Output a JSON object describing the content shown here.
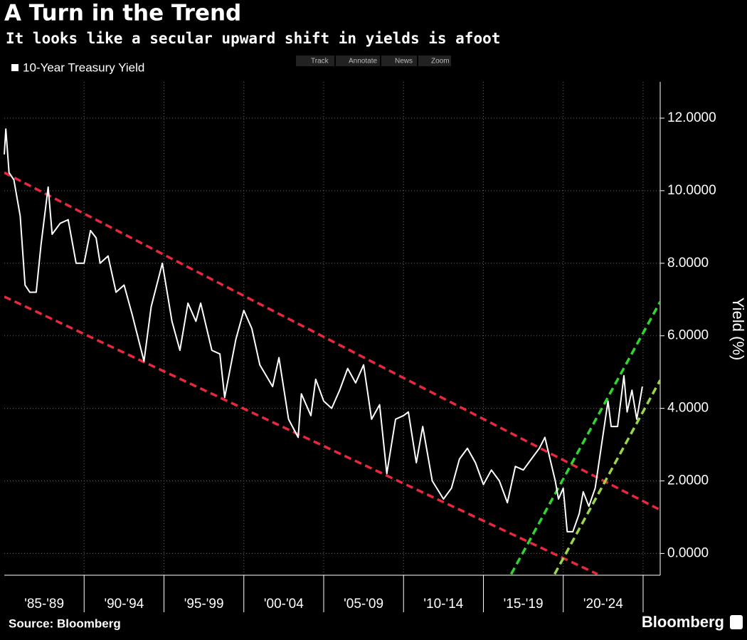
{
  "chart_data": {
    "type": "line",
    "title": "A Turn in the Trend",
    "subtitle": "It looks like a secular upward shift in yields is afoot",
    "y_label": "Yield (%)",
    "source": "Source: Bloomberg",
    "brand": "Bloomberg",
    "toolbar": [
      "Track",
      "Annotate",
      "News",
      "Zoom"
    ],
    "categories": [
      "'85-'89",
      "'90-'94",
      "'95-'99",
      "'00-'04",
      "'05-'09",
      "'10-'14",
      "'15-'19",
      "'20-'24"
    ],
    "xlim": [
      1985,
      2026.07
    ],
    "xticks": [
      1990,
      1995,
      2000,
      2005,
      2010,
      2015,
      2020,
      2025
    ],
    "ylim": [
      -0.6,
      13.0
    ],
    "yticks": [
      {
        "value": 0,
        "label": "0.0000"
      },
      {
        "value": 2,
        "label": "2.0000"
      },
      {
        "value": 4,
        "label": "4.0000"
      },
      {
        "value": 6,
        "label": "6.0000"
      },
      {
        "value": 8,
        "label": "8.0000"
      },
      {
        "value": 10,
        "label": "10.0000"
      },
      {
        "value": 12,
        "label": "12.0000"
      }
    ],
    "grid": true,
    "series": [
      {
        "name": "10-Year Treasury Yield",
        "color": "#ffffff",
        "x": [
          1985.0,
          1985.1,
          1985.3,
          1985.6,
          1986.0,
          1986.3,
          1986.6,
          1987.0,
          1987.3,
          1987.75,
          1988.0,
          1988.5,
          1989.0,
          1989.5,
          1990.0,
          1990.4,
          1990.75,
          1991.0,
          1991.5,
          1992.0,
          1992.5,
          1993.0,
          1993.75,
          1994.2,
          1994.9,
          1995.5,
          1996.0,
          1996.5,
          1997.0,
          1997.3,
          1998.0,
          1998.5,
          1998.8,
          1999.5,
          2000.0,
          2000.5,
          2001.0,
          2001.8,
          2002.2,
          2002.8,
          2003.4,
          2003.6,
          2004.2,
          2004.5,
          2005.0,
          2005.5,
          2006.0,
          2006.5,
          2007.0,
          2007.5,
          2008.0,
          2008.5,
          2008.95,
          2009.5,
          2010.0,
          2010.3,
          2010.8,
          2011.2,
          2011.8,
          2012.5,
          2013.0,
          2013.5,
          2014.0,
          2014.5,
          2015.0,
          2015.5,
          2016.0,
          2016.5,
          2017.0,
          2017.5,
          2018.0,
          2018.5,
          2018.85,
          2019.5,
          2019.7,
          2020.0,
          2020.25,
          2020.6,
          2021.0,
          2021.25,
          2021.6,
          2022.0,
          2022.4,
          2022.8,
          2023.0,
          2023.4,
          2023.8,
          2024.0,
          2024.3,
          2024.6,
          2024.95
        ],
        "values": [
          11.0,
          11.7,
          10.5,
          10.3,
          9.3,
          7.4,
          7.2,
          7.2,
          8.5,
          10.1,
          8.8,
          9.1,
          9.2,
          8.0,
          8.0,
          8.9,
          8.7,
          8.0,
          8.2,
          7.2,
          7.4,
          6.6,
          5.3,
          6.8,
          8.0,
          6.4,
          5.6,
          6.9,
          6.4,
          6.9,
          5.6,
          5.5,
          4.3,
          5.9,
          6.7,
          6.2,
          5.2,
          4.6,
          5.4,
          3.7,
          3.2,
          4.4,
          3.8,
          4.8,
          4.2,
          4.0,
          4.5,
          5.1,
          4.7,
          5.2,
          3.7,
          4.1,
          2.2,
          3.7,
          3.8,
          3.9,
          2.5,
          3.5,
          2.0,
          1.5,
          1.8,
          2.6,
          2.9,
          2.5,
          1.9,
          2.3,
          2.0,
          1.4,
          2.4,
          2.3,
          2.6,
          2.9,
          3.2,
          2.0,
          1.5,
          1.8,
          0.6,
          0.6,
          1.1,
          1.7,
          1.3,
          1.8,
          3.0,
          4.2,
          3.5,
          3.5,
          4.9,
          3.9,
          4.5,
          3.7,
          4.6
        ]
      }
    ],
    "trend_lines": [
      {
        "color": "#e8283c",
        "x": [
          1985,
          2026.07
        ],
        "values": [
          10.5,
          1.2
        ]
      },
      {
        "color": "#e8283c",
        "x": [
          1985,
          2022.14
        ],
        "values": [
          7.08,
          -0.57
        ]
      },
      {
        "color": "#2ed62e",
        "x": [
          2016.74,
          2026.07
        ],
        "values": [
          -0.57,
          6.94
        ]
      },
      {
        "color": "#9ad64a",
        "x": [
          2019.46,
          2026.07
        ],
        "values": [
          -0.57,
          4.78
        ]
      }
    ]
  }
}
